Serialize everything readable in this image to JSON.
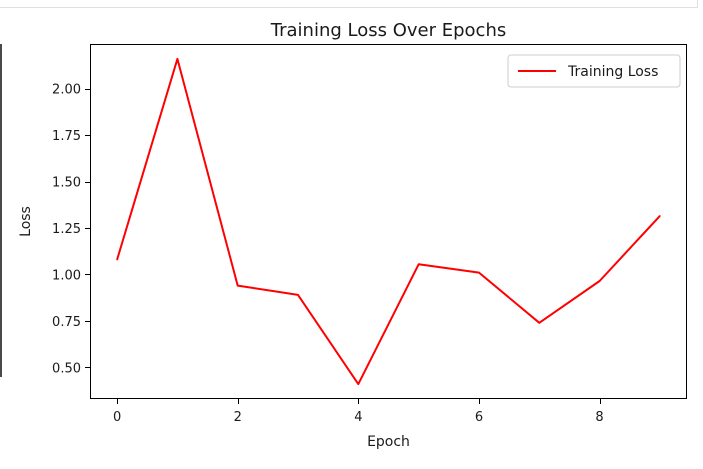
{
  "chart_data": {
    "type": "line",
    "title": "Training Loss Over Epochs",
    "xlabel": "Epoch",
    "ylabel": "Loss",
    "xlim": [
      -0.45,
      9.45
    ],
    "ylim": [
      0.33,
      2.24
    ],
    "x_ticks": [
      0,
      2,
      4,
      6,
      8
    ],
    "x_tick_labels": [
      "0",
      "2",
      "4",
      "6",
      "8"
    ],
    "y_ticks": [
      0.5,
      0.75,
      1.0,
      1.25,
      1.5,
      1.75,
      2.0
    ],
    "y_tick_labels": [
      "0.50",
      "0.75",
      "1.00",
      "1.25",
      "1.50",
      "1.75",
      "2.00"
    ],
    "grid": false,
    "legend_position": "top-right",
    "series": [
      {
        "name": "Training Loss",
        "color": "#ff0000",
        "x": [
          0,
          1,
          2,
          3,
          4,
          5,
          6,
          7,
          8,
          9
        ],
        "y": [
          1.08,
          2.16,
          0.94,
          0.89,
          0.41,
          1.055,
          1.01,
          0.74,
          0.965,
          1.315
        ]
      }
    ]
  }
}
